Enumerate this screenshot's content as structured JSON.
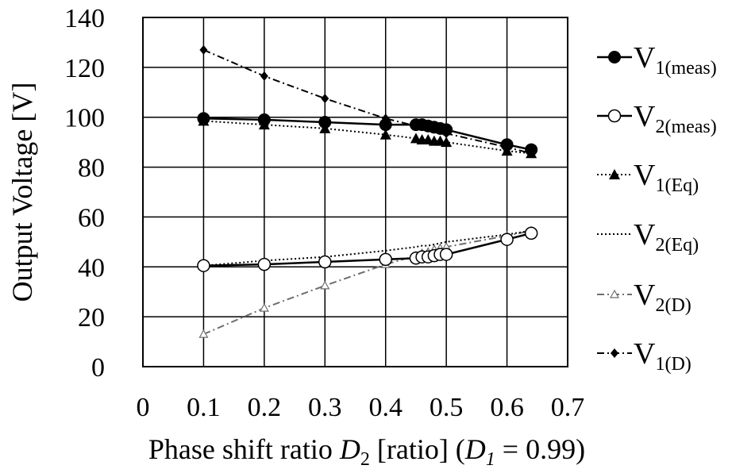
{
  "chart_data": {
    "type": "line",
    "xlabel": {
      "pre": "Phase shift ratio ",
      "d2_base": "D",
      "d2_sub": "2",
      "mid": " [ratio] (",
      "d1_base": "D",
      "d1_sub": "1",
      "post": " = 0.99)"
    },
    "ylabel": "Output Voltage [V]",
    "xlim": [
      0,
      0.7
    ],
    "ylim": [
      0,
      140
    ],
    "xticks": [
      "0",
      "0.1",
      "0.2",
      "0.3",
      "0.4",
      "0.5",
      "0.6",
      "0.7"
    ],
    "yticks": [
      "0",
      "20",
      "40",
      "60",
      "80",
      "100",
      "120",
      "140"
    ],
    "grid": true,
    "legend_position": "right",
    "series": [
      {
        "name": "V1(meas)",
        "label_main": "V",
        "label_sub": "1(meas)",
        "marker": "filled-circle",
        "line": "solid",
        "color": "#000000",
        "x": [
          0.1,
          0.2,
          0.3,
          0.4,
          0.45,
          0.46,
          0.47,
          0.48,
          0.49,
          0.5,
          0.6,
          0.64
        ],
        "y": [
          99.5,
          99.0,
          98.0,
          97.0,
          97.0,
          97.0,
          96.5,
          96.0,
          95.5,
          95.0,
          89.0,
          87.0
        ]
      },
      {
        "name": "V2(meas)",
        "label_main": "V",
        "label_sub": "2(meas)",
        "marker": "open-circle",
        "line": "solid",
        "color": "#000000",
        "x": [
          0.1,
          0.2,
          0.3,
          0.4,
          0.45,
          0.46,
          0.47,
          0.48,
          0.49,
          0.5,
          0.6,
          0.64
        ],
        "y": [
          40.5,
          41.0,
          42.0,
          43.0,
          43.5,
          44.0,
          44.0,
          44.5,
          45.0,
          45.0,
          51.0,
          53.5
        ]
      },
      {
        "name": "V1(Eq)",
        "label_main": "V",
        "label_sub": "1(Eq)",
        "marker": "filled-triangle",
        "line": "dotted",
        "color": "#000000",
        "x": [
          0.1,
          0.2,
          0.3,
          0.4,
          0.45,
          0.46,
          0.47,
          0.48,
          0.49,
          0.5,
          0.6,
          0.64
        ],
        "y": [
          98.5,
          97.0,
          95.5,
          93.0,
          91.5,
          91.0,
          91.0,
          90.5,
          90.5,
          90.0,
          86.5,
          85.5
        ]
      },
      {
        "name": "V2(Eq)",
        "label_main": "V",
        "label_sub": "2(Eq)",
        "marker": "none",
        "line": "dotted",
        "color": "#000000",
        "x": [
          0.1,
          0.2,
          0.3,
          0.4,
          0.45,
          0.46,
          0.47,
          0.48,
          0.49,
          0.5,
          0.6,
          0.64
        ],
        "y": [
          40.5,
          42.5,
          44.0,
          46.5,
          48.0,
          48.5,
          48.5,
          49.0,
          49.5,
          50.0,
          53.0,
          54.5
        ]
      },
      {
        "name": "V2(D)",
        "label_main": "V",
        "label_sub": "2(D)",
        "marker": "open-triangle",
        "line": "dash-dot",
        "color": "#6e6e6e",
        "x": [
          0.1,
          0.2,
          0.3,
          0.4,
          0.45,
          0.46,
          0.47,
          0.48,
          0.49,
          0.5,
          0.6,
          0.64
        ],
        "y": [
          13.0,
          23.5,
          32.5,
          41.0,
          44.5,
          45.5,
          46.0,
          47.0,
          47.5,
          48.0,
          52.5,
          54.5
        ]
      },
      {
        "name": "V1(D)",
        "label_main": "V",
        "label_sub": "1(D)",
        "marker": "filled-diamond",
        "line": "dash-dot",
        "color": "#000000",
        "x": [
          0.1,
          0.2,
          0.3,
          0.4,
          0.5,
          0.6,
          0.64
        ],
        "y": [
          127.0,
          116.5,
          107.5,
          99.5,
          93.5,
          88.0,
          85.5
        ]
      }
    ]
  }
}
